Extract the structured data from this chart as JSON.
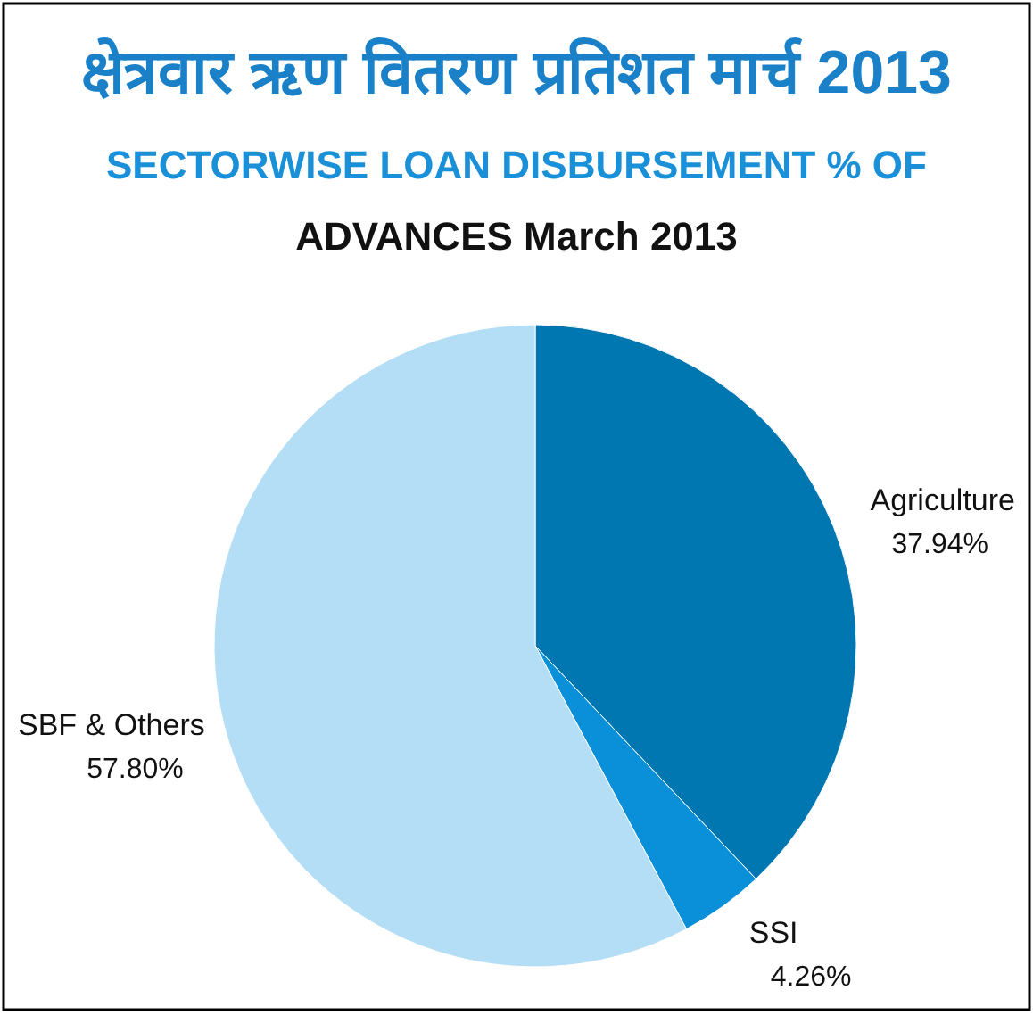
{
  "chart_data": {
    "type": "pie",
    "title": "क्षेत्रवार ऋण वितरण प्रतिशत मार्च 2013",
    "subtitle": "SECTORWISE LOAN DISBURSEMENT % OF",
    "annotations": [
      "ADVANCES March 2013"
    ],
    "categories": [
      "Agriculture",
      "SSI",
      "SBF & Others"
    ],
    "values": [
      37.94,
      4.26,
      57.8
    ],
    "colors": [
      "#0077b0",
      "#0a90d8",
      "#b3def6"
    ],
    "value_labels": [
      "37.94%",
      "4.26%",
      "57.80%"
    ]
  }
}
